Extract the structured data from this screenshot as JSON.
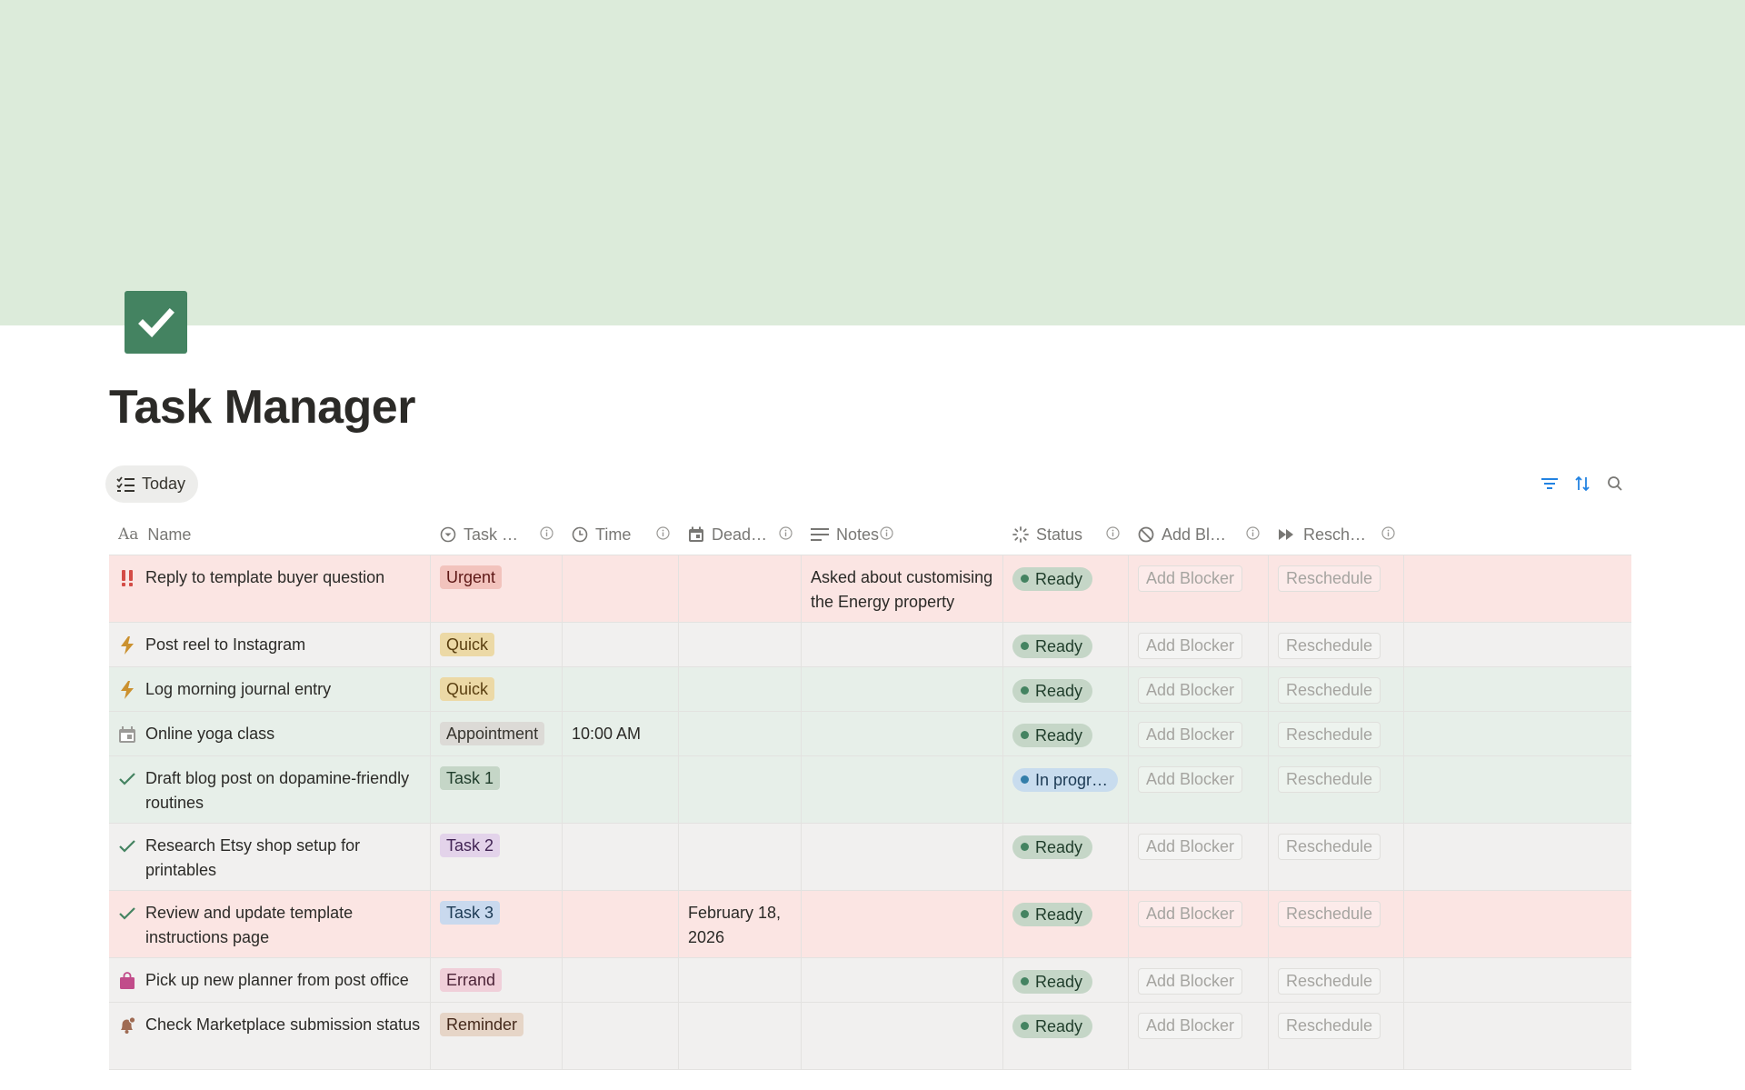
{
  "page": {
    "title": "Task Manager"
  },
  "view": {
    "tab_label": "Today"
  },
  "columns": {
    "name": "Name",
    "task_type": "Task …",
    "time": "Time",
    "deadline": "Dead…",
    "notes": "Notes",
    "status": "Status",
    "add_blocker": "Add Bl…",
    "reschedule": "Resch…"
  },
  "rows": [
    {
      "icon": "double-exclamation-icon",
      "name": "Reply to template buyer question",
      "tag": "Urgent",
      "time": "",
      "deadline": "",
      "notes": "Asked about customising the Energy property",
      "status": "Ready",
      "blocker": "Add Blocker",
      "reschedule": "Reschedule"
    },
    {
      "icon": "lightning-icon",
      "name": "Post reel to Instagram",
      "tag": "Quick",
      "time": "",
      "deadline": "",
      "notes": "",
      "status": "Ready",
      "blocker": "Add Blocker",
      "reschedule": "Reschedule"
    },
    {
      "icon": "lightning-icon",
      "name": "Log morning journal entry",
      "tag": "Quick",
      "time": "",
      "deadline": "",
      "notes": "",
      "status": "Ready",
      "blocker": "Add Blocker",
      "reschedule": "Reschedule"
    },
    {
      "icon": "calendar-icon",
      "name": "Online yoga class",
      "tag": "Appointment",
      "time": "10:00 AM",
      "deadline": "",
      "notes": "",
      "status": "Ready",
      "blocker": "Add Blocker",
      "reschedule": "Reschedule"
    },
    {
      "icon": "checkmark-icon",
      "name": "Draft blog post on dopamine-friendly routines",
      "tag": "Task 1",
      "time": "",
      "deadline": "",
      "notes": "",
      "status": "In progr…",
      "blocker": "Add Blocker",
      "reschedule": "Reschedule"
    },
    {
      "icon": "checkmark-icon",
      "name": "Research Etsy shop setup for printables",
      "tag": "Task 2",
      "time": "",
      "deadline": "",
      "notes": "",
      "status": "Ready",
      "blocker": "Add Blocker",
      "reschedule": "Reschedule"
    },
    {
      "icon": "checkmark-icon",
      "name": "Review and update template instructions page",
      "tag": "Task 3",
      "time": "",
      "deadline": "February 18, 2026",
      "notes": "",
      "status": "Ready",
      "blocker": "Add Blocker",
      "reschedule": "Reschedule"
    },
    {
      "icon": "shopping-bag-icon",
      "name": "Pick up new planner from post office",
      "tag": "Errand",
      "time": "",
      "deadline": "",
      "notes": "",
      "status": "Ready",
      "blocker": "Add Blocker",
      "reschedule": "Reschedule"
    },
    {
      "icon": "bell-icon",
      "name": "Check Marketplace submission status",
      "tag": "Reminder",
      "time": "",
      "deadline": "",
      "notes": "",
      "status": "Ready",
      "blocker": "Add Blocker",
      "reschedule": "Reschedule"
    }
  ],
  "colors": {
    "cover": "#dcebda",
    "page_icon": "#448361",
    "row_red": "#fbe5e3",
    "row_grey": "#f1f0ef",
    "row_green": "#e7efe9",
    "tag_urgent": "#f2c3bd",
    "tag_quick": "#ecd9a6",
    "tag_appointment": "#dcdad6",
    "tag_task1": "#c5d6c7",
    "tag_task2": "#e3d3ea",
    "tag_task3": "#c9d9ee",
    "tag_errand": "#f0cfd9",
    "tag_reminder": "#e6d5c7"
  }
}
